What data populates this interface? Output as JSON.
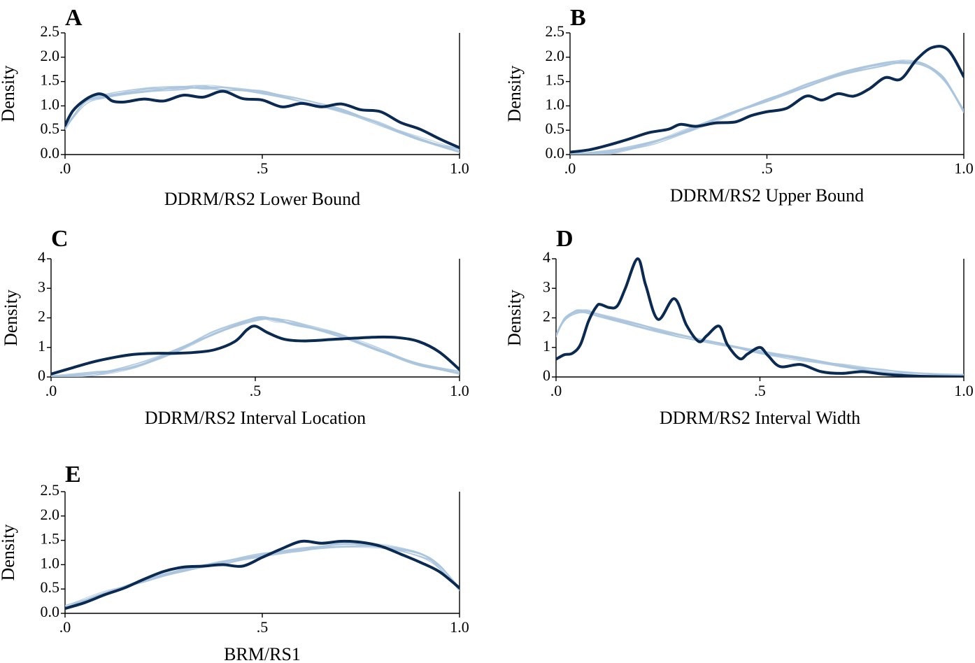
{
  "colors": {
    "observed": "#0a2a52",
    "simulated": "#a9c4dd",
    "axis": "#000000"
  },
  "chart_data": [
    {
      "id": "A",
      "type": "line",
      "panel_label": "A",
      "xlabel": "DDRM/RS2 Lower Bound",
      "ylabel": "Density",
      "xlim": [
        0,
        1
      ],
      "ylim": [
        0,
        2.5
      ],
      "x_ticks": [
        0,
        0.5,
        1
      ],
      "x_tick_labels": [
        ".0",
        ".5",
        "1.0"
      ],
      "y_ticks": [
        0,
        0.5,
        1,
        1.5,
        2,
        2.5
      ],
      "y_tick_labels": [
        "0.0",
        "0.5",
        "1.0",
        "1.5",
        "2.0",
        "2.5"
      ],
      "series": [
        {
          "role": "simulated",
          "x": [
            0,
            0.05,
            0.1,
            0.2,
            0.3,
            0.35,
            0.4,
            0.5,
            0.6,
            0.7,
            0.8,
            0.9,
            1.0
          ],
          "y": [
            0.55,
            1.05,
            1.2,
            1.32,
            1.37,
            1.38,
            1.36,
            1.27,
            1.12,
            0.9,
            0.62,
            0.33,
            0.08
          ]
        },
        {
          "role": "observed",
          "x": [
            0,
            0.02,
            0.05,
            0.08,
            0.1,
            0.12,
            0.15,
            0.2,
            0.25,
            0.3,
            0.35,
            0.4,
            0.45,
            0.5,
            0.55,
            0.6,
            0.65,
            0.7,
            0.75,
            0.8,
            0.85,
            0.9,
            0.95,
            1.0
          ],
          "y": [
            0.6,
            0.9,
            1.12,
            1.24,
            1.22,
            1.1,
            1.08,
            1.14,
            1.1,
            1.22,
            1.18,
            1.3,
            1.15,
            1.12,
            0.98,
            1.05,
            0.98,
            1.04,
            0.92,
            0.88,
            0.66,
            0.52,
            0.32,
            0.14
          ]
        }
      ]
    },
    {
      "id": "B",
      "type": "line",
      "panel_label": "B",
      "xlabel": "DDRM/RS2 Upper Bound",
      "ylabel": "Density",
      "xlim": [
        0,
        1
      ],
      "ylim": [
        0,
        2.5
      ],
      "x_ticks": [
        0,
        0.5,
        1
      ],
      "x_tick_labels": [
        ".0",
        ".5",
        "1.0"
      ],
      "y_ticks": [
        0,
        0.5,
        1,
        1.5,
        2,
        2.5
      ],
      "y_tick_labels": [
        "0.0",
        "0.5",
        "1.0",
        "1.5",
        "2.0",
        "2.5"
      ],
      "series": [
        {
          "role": "simulated",
          "x": [
            0,
            0.1,
            0.2,
            0.3,
            0.4,
            0.5,
            0.6,
            0.7,
            0.8,
            0.85,
            0.9,
            0.95,
            1.0
          ],
          "y": [
            0.0,
            0.05,
            0.22,
            0.5,
            0.82,
            1.12,
            1.42,
            1.68,
            1.86,
            1.9,
            1.85,
            1.55,
            0.9
          ]
        },
        {
          "role": "observed",
          "x": [
            0,
            0.05,
            0.1,
            0.15,
            0.2,
            0.25,
            0.28,
            0.32,
            0.37,
            0.42,
            0.46,
            0.5,
            0.55,
            0.6,
            0.64,
            0.68,
            0.72,
            0.76,
            0.8,
            0.84,
            0.88,
            0.92,
            0.96,
            1.0
          ],
          "y": [
            0.05,
            0.1,
            0.2,
            0.32,
            0.45,
            0.52,
            0.62,
            0.58,
            0.65,
            0.67,
            0.8,
            0.88,
            0.95,
            1.2,
            1.12,
            1.25,
            1.2,
            1.35,
            1.58,
            1.55,
            1.95,
            2.2,
            2.15,
            1.6
          ]
        }
      ]
    },
    {
      "id": "C",
      "type": "line",
      "panel_label": "C",
      "xlabel": "DDRM/RS2 Interval Location",
      "ylabel": "Density",
      "xlim": [
        0,
        1
      ],
      "ylim": [
        0,
        4
      ],
      "x_ticks": [
        0,
        0.5,
        1
      ],
      "x_tick_labels": [
        ".0",
        ".5",
        "1.0"
      ],
      "y_ticks": [
        0,
        1,
        2,
        3,
        4
      ],
      "y_tick_labels": [
        "0",
        "1",
        "2",
        "3",
        "4"
      ],
      "series": [
        {
          "role": "simulated",
          "x": [
            0,
            0.1,
            0.2,
            0.3,
            0.4,
            0.5,
            0.55,
            0.6,
            0.7,
            0.8,
            0.9,
            1.0
          ],
          "y": [
            0.0,
            0.1,
            0.35,
            0.85,
            1.5,
            1.95,
            1.92,
            1.8,
            1.45,
            0.95,
            0.45,
            0.15
          ]
        },
        {
          "role": "observed",
          "x": [
            0,
            0.05,
            0.1,
            0.15,
            0.2,
            0.25,
            0.3,
            0.35,
            0.4,
            0.45,
            0.48,
            0.5,
            0.53,
            0.57,
            0.62,
            0.7,
            0.8,
            0.85,
            0.9,
            0.95,
            1.0
          ],
          "y": [
            0.1,
            0.3,
            0.5,
            0.65,
            0.76,
            0.8,
            0.8,
            0.83,
            0.92,
            1.2,
            1.6,
            1.72,
            1.5,
            1.28,
            1.22,
            1.28,
            1.35,
            1.33,
            1.2,
            0.85,
            0.25
          ]
        }
      ]
    },
    {
      "id": "D",
      "type": "line",
      "panel_label": "D",
      "xlabel": "DDRM/RS2 Interval Width",
      "ylabel": "Density",
      "xlim": [
        0,
        1
      ],
      "ylim": [
        0,
        4
      ],
      "x_ticks": [
        0,
        0.5,
        1
      ],
      "x_tick_labels": [
        ".0",
        ".5",
        "1.0"
      ],
      "y_ticks": [
        0,
        1,
        2,
        3,
        4
      ],
      "y_tick_labels": [
        "0",
        "1",
        "2",
        "3",
        "4"
      ],
      "series": [
        {
          "role": "simulated",
          "x": [
            0,
            0.02,
            0.05,
            0.08,
            0.1,
            0.2,
            0.3,
            0.4,
            0.5,
            0.6,
            0.7,
            0.8,
            0.9,
            1.0
          ],
          "y": [
            1.4,
            1.95,
            2.2,
            2.2,
            2.1,
            1.75,
            1.42,
            1.13,
            0.85,
            0.6,
            0.38,
            0.2,
            0.08,
            0.02
          ]
        },
        {
          "role": "observed",
          "x": [
            0,
            0.02,
            0.04,
            0.06,
            0.08,
            0.1,
            0.11,
            0.13,
            0.15,
            0.17,
            0.2,
            0.22,
            0.25,
            0.29,
            0.32,
            0.35,
            0.37,
            0.4,
            0.42,
            0.45,
            0.47,
            0.5,
            0.52,
            0.55,
            0.6,
            0.65,
            0.7,
            0.75,
            0.8,
            0.85,
            0.9,
            1.0
          ],
          "y": [
            0.6,
            0.75,
            0.8,
            1.1,
            1.9,
            2.4,
            2.45,
            2.35,
            2.4,
            3.0,
            4.0,
            3.1,
            1.95,
            2.65,
            1.75,
            1.2,
            1.4,
            1.72,
            1.1,
            0.62,
            0.78,
            1.0,
            0.72,
            0.35,
            0.42,
            0.18,
            0.12,
            0.18,
            0.1,
            0.05,
            0.02,
            0.0
          ]
        }
      ]
    },
    {
      "id": "E",
      "type": "line",
      "panel_label": "E",
      "xlabel": "BRM/RS1",
      "ylabel": "Density",
      "xlim": [
        0,
        1
      ],
      "ylim": [
        0,
        2.5
      ],
      "x_ticks": [
        0,
        0.5,
        1
      ],
      "x_tick_labels": [
        ".0",
        ".5",
        "1.0"
      ],
      "y_ticks": [
        0,
        0.5,
        1,
        1.5,
        2,
        2.5
      ],
      "y_tick_labels": [
        "0.0",
        "0.5",
        "1.0",
        "1.5",
        "2.0",
        "2.5"
      ],
      "series": [
        {
          "role": "simulated",
          "x": [
            0,
            0.1,
            0.2,
            0.3,
            0.4,
            0.5,
            0.6,
            0.7,
            0.8,
            0.9,
            0.95,
            1.0
          ],
          "y": [
            0.12,
            0.42,
            0.68,
            0.88,
            1.05,
            1.2,
            1.32,
            1.4,
            1.38,
            1.2,
            0.95,
            0.5
          ]
        },
        {
          "role": "observed",
          "x": [
            0,
            0.05,
            0.1,
            0.15,
            0.2,
            0.25,
            0.3,
            0.35,
            0.4,
            0.45,
            0.5,
            0.55,
            0.6,
            0.65,
            0.7,
            0.75,
            0.8,
            0.85,
            0.9,
            0.95,
            1.0
          ],
          "y": [
            0.1,
            0.22,
            0.38,
            0.52,
            0.7,
            0.86,
            0.95,
            0.97,
            1.0,
            0.97,
            1.15,
            1.33,
            1.48,
            1.44,
            1.48,
            1.46,
            1.38,
            1.22,
            1.05,
            0.85,
            0.52
          ]
        }
      ]
    }
  ]
}
